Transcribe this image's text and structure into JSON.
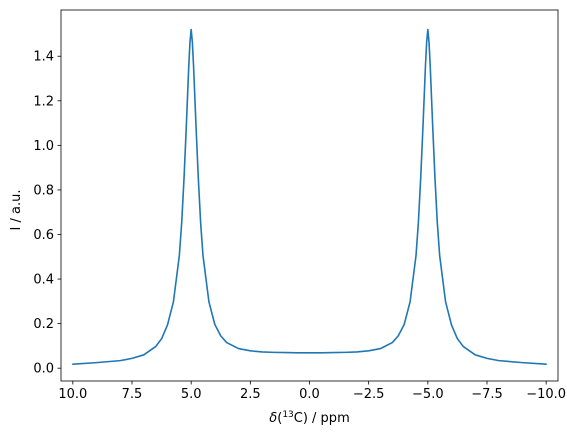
{
  "chart_data": {
    "type": "line",
    "title": "",
    "xlabel": "δ(13C) / ppm",
    "xlabel_parts": {
      "symbol": "δ",
      "open": "(",
      "superscript": "13",
      "element": "C",
      "close": ") / ppm"
    },
    "ylabel": "I / a.u.",
    "xlim": [
      10.5,
      -10.5
    ],
    "ylim": [
      -0.0575,
      1.6075
    ],
    "x_inverted": true,
    "grid": false,
    "legend": "none",
    "x_ticks": [
      {
        "value": 10.0,
        "label": "10.0"
      },
      {
        "value": 7.5,
        "label": "7.5"
      },
      {
        "value": 5.0,
        "label": "5.0"
      },
      {
        "value": 2.5,
        "label": "2.5"
      },
      {
        "value": 0.0,
        "label": "0.0"
      },
      {
        "value": -2.5,
        "label": "−2.5"
      },
      {
        "value": -5.0,
        "label": "−5.0"
      },
      {
        "value": -7.5,
        "label": "−7.5"
      },
      {
        "value": -10.0,
        "label": "−10.0"
      }
    ],
    "y_ticks": [
      {
        "value": 0.0,
        "label": "0.0"
      },
      {
        "value": 0.2,
        "label": "0.2"
      },
      {
        "value": 0.4,
        "label": "0.4"
      },
      {
        "value": 0.6,
        "label": "0.6"
      },
      {
        "value": 0.8,
        "label": "0.8"
      },
      {
        "value": 1.0,
        "label": "1.0"
      },
      {
        "value": 1.2,
        "label": "1.2"
      },
      {
        "value": 1.4,
        "label": "1.4"
      }
    ],
    "series": [
      {
        "color": "#1f77b4",
        "x": [
          10.0,
          9.0,
          8.0,
          7.5,
          7.0,
          6.5,
          6.25,
          6.0,
          5.75,
          5.5,
          5.4,
          5.3,
          5.2,
          5.1,
          5.05,
          5.0,
          4.95,
          4.9,
          4.8,
          4.7,
          4.6,
          4.5,
          4.25,
          4.0,
          3.75,
          3.5,
          3.0,
          2.5,
          2.0,
          1.5,
          1.0,
          0.5,
          0.0,
          -0.5,
          -1.0,
          -1.5,
          -2.0,
          -2.5,
          -3.0,
          -3.5,
          -3.75,
          -4.0,
          -4.25,
          -4.5,
          -4.6,
          -4.7,
          -4.8,
          -4.9,
          -4.95,
          -5.0,
          -5.05,
          -5.1,
          -5.2,
          -5.3,
          -5.4,
          -5.5,
          -5.75,
          -6.0,
          -6.25,
          -6.5,
          -7.0,
          -7.5,
          -8.0,
          -9.0,
          -10.0
        ],
        "y": [
          0.018,
          0.025,
          0.034,
          0.044,
          0.06,
          0.097,
          0.132,
          0.194,
          0.298,
          0.505,
          0.653,
          0.856,
          1.099,
          1.358,
          1.463,
          1.52,
          1.463,
          1.358,
          1.099,
          0.856,
          0.653,
          0.505,
          0.298,
          0.196,
          0.145,
          0.115,
          0.088,
          0.078,
          0.073,
          0.071,
          0.07,
          0.069,
          0.069,
          0.069,
          0.07,
          0.071,
          0.073,
          0.078,
          0.088,
          0.115,
          0.145,
          0.196,
          0.298,
          0.505,
          0.653,
          0.856,
          1.099,
          1.358,
          1.463,
          1.52,
          1.463,
          1.358,
          1.099,
          0.856,
          0.653,
          0.505,
          0.298,
          0.194,
          0.132,
          0.097,
          0.06,
          0.044,
          0.034,
          0.025,
          0.018
        ]
      }
    ]
  }
}
